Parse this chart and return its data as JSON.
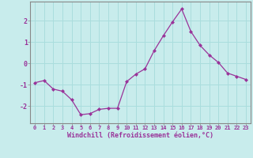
{
  "x": [
    0,
    1,
    2,
    3,
    4,
    5,
    6,
    7,
    8,
    9,
    10,
    11,
    12,
    13,
    14,
    15,
    16,
    17,
    18,
    19,
    20,
    21,
    22,
    23
  ],
  "y": [
    -0.9,
    -0.8,
    -1.2,
    -1.3,
    -1.7,
    -2.4,
    -2.35,
    -2.15,
    -2.1,
    -2.1,
    -0.85,
    -0.5,
    -0.25,
    0.6,
    1.3,
    1.95,
    2.55,
    1.5,
    0.85,
    0.4,
    0.05,
    -0.45,
    -0.6,
    -0.75
  ],
  "line_color": "#993399",
  "marker": "D",
  "marker_size": 2.0,
  "bg_color": "#c8ecec",
  "grid_color": "#aadddd",
  "xlabel": "Windchill (Refroidissement éolien,°C)",
  "xlabel_color": "#993399",
  "tick_color": "#993399",
  "spine_color": "#888888",
  "ylim": [
    -2.8,
    2.9
  ],
  "yticks": [
    -2,
    -1,
    0,
    1,
    2
  ],
  "xlim": [
    -0.5,
    23.5
  ],
  "xticks": [
    0,
    1,
    2,
    3,
    4,
    5,
    6,
    7,
    8,
    9,
    10,
    11,
    12,
    13,
    14,
    15,
    16,
    17,
    18,
    19,
    20,
    21,
    22,
    23
  ],
  "tick_fontsize": 5.0,
  "ytick_fontsize": 6.0,
  "xlabel_fontsize": 6.0
}
